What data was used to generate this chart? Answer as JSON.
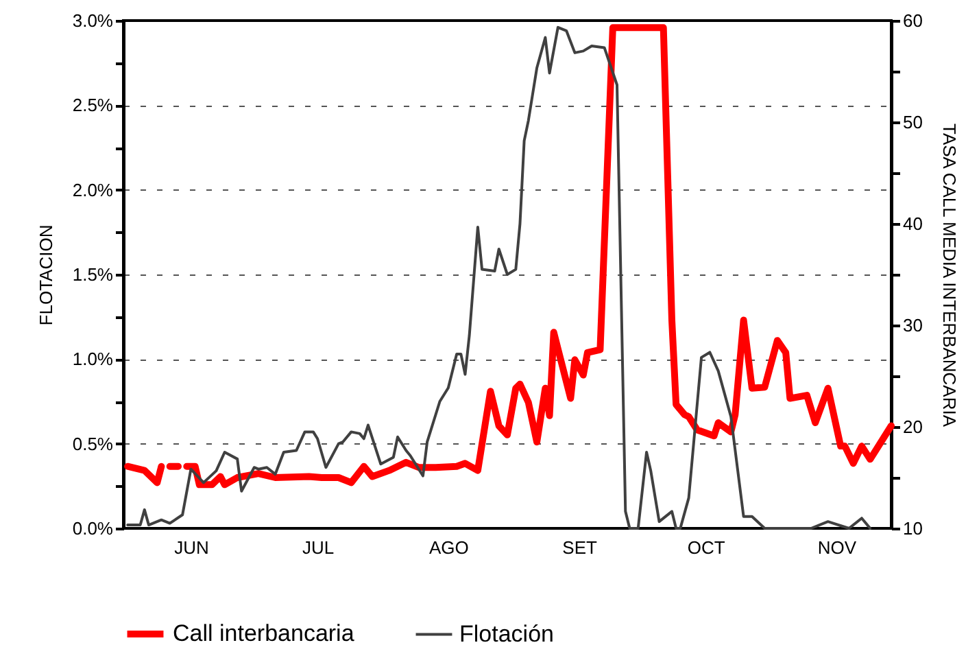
{
  "chart_data": {
    "type": "line",
    "ylabel": "FLOTACION",
    "y2label": "TASA CALL MEDIA INTERBANCARIA",
    "xlim": [
      "--05-30",
      "--11-28"
    ],
    "xticks": [
      {
        "value": "--06-15",
        "label": "JUN"
      },
      {
        "value": "--07-15",
        "label": "JUL"
      },
      {
        "value": "--08-15",
        "label": "AGO"
      },
      {
        "value": "--09-15",
        "label": "SET"
      },
      {
        "value": "--10-15",
        "label": "OCT"
      },
      {
        "value": "--11-15",
        "label": "NOV"
      }
    ],
    "ylim": [
      0,
      3
    ],
    "yticks": [
      {
        "value": 0,
        "label": "0.0%"
      },
      {
        "value": 0.25,
        "label": null
      },
      {
        "value": 0.5,
        "label": "0.5%"
      },
      {
        "value": 0.75,
        "label": null
      },
      {
        "value": 1,
        "label": "1.0%"
      },
      {
        "value": 1.25,
        "label": null
      },
      {
        "value": 1.5,
        "label": "1.5%"
      },
      {
        "value": 1.75,
        "label": null
      },
      {
        "value": 2,
        "label": "2.0%"
      },
      {
        "value": 2.25,
        "label": null
      },
      {
        "value": 2.5,
        "label": "2.5%"
      },
      {
        "value": 2.75,
        "label": null
      },
      {
        "value": 3,
        "label": "3.0%"
      }
    ],
    "y2lim": [
      10,
      60
    ],
    "y2ticks": [
      {
        "value": 10,
        "label": "10"
      },
      {
        "value": 15,
        "label": null
      },
      {
        "value": 20,
        "label": "20"
      },
      {
        "value": 25,
        "label": null
      },
      {
        "value": 30,
        "label": "30"
      },
      {
        "value": 35,
        "label": null
      },
      {
        "value": 40,
        "label": "40"
      },
      {
        "value": 45,
        "label": null
      },
      {
        "value": 50,
        "label": "50"
      },
      {
        "value": 55,
        "label": null
      },
      {
        "value": 60,
        "label": "60"
      }
    ],
    "grid": "y",
    "legend": "bottom",
    "series": [
      {
        "name": "Call interbancaria",
        "color": "#ff0000",
        "axis": "y2",
        "x": [
          "--05-31",
          "--06-04",
          "--06-07",
          "--06-08",
          "--06-09",
          "--06-10",
          "--06-12",
          "--06-13",
          "--06-14",
          "--06-16",
          "--06-17",
          "--06-20",
          "--06-22",
          "--06-23",
          "--06-26",
          "--07-01",
          "--07-05",
          "--07-13",
          "--07-16",
          "--07-20",
          "--07-23",
          "--07-26",
          "--07-28",
          "--08-01",
          "--08-05",
          "--08-08",
          "--08-12",
          "--08-17",
          "--08-19",
          "--08-22",
          "--08-25",
          "--08-27",
          "--08-29",
          "--08-31",
          "--09-01",
          "--09-03",
          "--09-05",
          "--09-07",
          "--09-08",
          "--09-09",
          "--09-13",
          "--09-14",
          "--09-16",
          "--09-17",
          "--09-20",
          "--09-23",
          "--10-05",
          "--10-07",
          "--10-08",
          "--10-10",
          "--10-11",
          "--10-13",
          "--10-17",
          "--10-18",
          "--10-21",
          "--10-22",
          "--10-24",
          "--10-26",
          "--10-29",
          "--11-01",
          "--11-03",
          "--11-04",
          "--11-08",
          "--11-10",
          "--11-13",
          "--11-16",
          "--11-17",
          "--11-19",
          "--11-21",
          "--11-23",
          "--11-28"
        ],
        "values": [
          16.1,
          15.7,
          14.5,
          16.1,
          null,
          16.1,
          16.1,
          null,
          16.1,
          16.1,
          14.3,
          14.3,
          15.1,
          14.3,
          15.0,
          15.4,
          15.0,
          15.1,
          15.0,
          15.0,
          14.5,
          16.1,
          15.1,
          15.7,
          16.5,
          16.0,
          16.0,
          16.1,
          16.4,
          15.7,
          23.5,
          20.1,
          19.2,
          23.8,
          24.2,
          22.4,
          18.5,
          23.8,
          21.1,
          29.3,
          22.8,
          26.6,
          25.1,
          27.3,
          27.6,
          59.3,
          59.3,
          30.5,
          22.2,
          21.2,
          21.0,
          19.7,
          19.1,
          20.4,
          19.5,
          21.2,
          30.5,
          23.8,
          23.9,
          28.5,
          27.3,
          22.8,
          23.1,
          20.4,
          23.8,
          18.1,
          18.1,
          16.4,
          18.1,
          16.8,
          20.1
        ]
      },
      {
        "name": "Flotación",
        "color": "#404040",
        "x": [
          "--05-31",
          "--06-03",
          "--06-04",
          "--06-05",
          "--06-08",
          "--06-10",
          "--06-13",
          "--06-15",
          "--06-18",
          "--06-21",
          "--06-23",
          "--06-26",
          "--06-27",
          "--06-30",
          "--07-01",
          "--07-03",
          "--07-05",
          "--07-07",
          "--07-10",
          "--07-12",
          "--07-14",
          "--07-15",
          "--07-17",
          "--07-20",
          "--07-21",
          "--07-23",
          "--07-25",
          "--07-26",
          "--07-27",
          "--07-30",
          "--08-02",
          "--08-03",
          "--08-05",
          "--08-06",
          "--08-09",
          "--08-10",
          "--08-13",
          "--08-15",
          "--08-17",
          "--08-18",
          "--08-19",
          "--08-20",
          "--08-22",
          "--08-23",
          "--08-26",
          "--08-27",
          "--08-29",
          "--08-31",
          "--09-01",
          "--09-02",
          "--09-03",
          "--09-05",
          "--09-07",
          "--09-08",
          "--09-10",
          "--09-12",
          "--09-14",
          "--09-16",
          "--09-18",
          "--09-21",
          "--09-24",
          "--09-26",
          "--09-27",
          "--09-29",
          "--10-01",
          "--10-02",
          "--10-04",
          "--10-07",
          "--10-08",
          "--10-09",
          "--10-11",
          "--10-14",
          "--10-16",
          "--10-18",
          "--10-21",
          "--10-24",
          "--10-26",
          "--10-29",
          "--11-09",
          "--11-13",
          "--11-18",
          "--11-21",
          "--11-23"
        ],
        "values": [
          0.02,
          0.02,
          0.11,
          0.02,
          0.05,
          0.03,
          0.08,
          0.35,
          0.27,
          0.34,
          0.45,
          0.41,
          0.22,
          0.36,
          0.35,
          0.36,
          0.32,
          0.45,
          0.46,
          0.57,
          0.57,
          0.53,
          0.36,
          0.5,
          0.51,
          0.57,
          0.56,
          0.53,
          0.61,
          0.38,
          0.42,
          0.54,
          0.46,
          0.43,
          0.31,
          0.51,
          0.75,
          0.83,
          1.03,
          1.03,
          0.91,
          1.14,
          1.78,
          1.53,
          1.52,
          1.65,
          1.5,
          1.53,
          1.8,
          2.29,
          2.41,
          2.72,
          2.9,
          2.69,
          2.96,
          2.94,
          2.81,
          2.82,
          2.85,
          2.84,
          2.62,
          0.1,
          0.0,
          0.0,
          0.45,
          0.34,
          0.04,
          0.1,
          0.0,
          0.0,
          0.18,
          1.01,
          1.04,
          0.93,
          0.66,
          0.07,
          0.07,
          0.0,
          0.0,
          0.04,
          0.0,
          0.06,
          0.0
        ]
      }
    ]
  }
}
